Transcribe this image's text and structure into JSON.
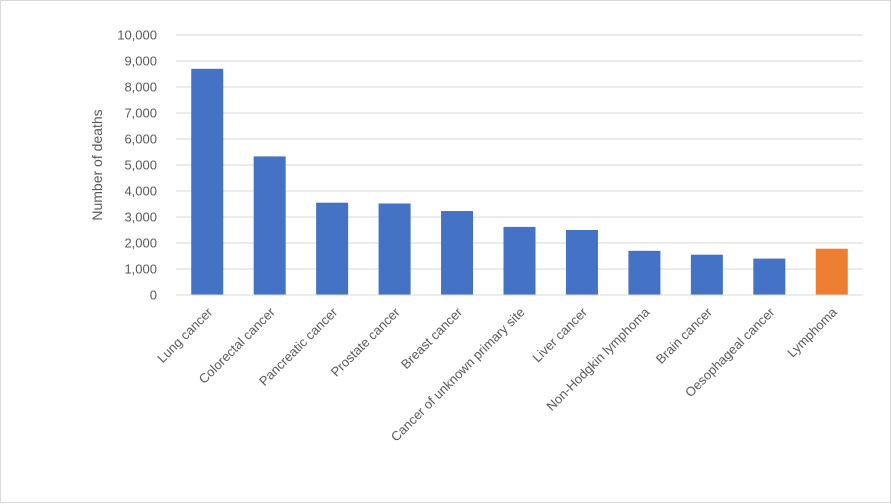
{
  "chart_data": {
    "type": "bar",
    "title": "",
    "xlabel": "",
    "ylabel": "Number of deaths",
    "ylim": [
      0,
      10000
    ],
    "yticks": [
      0,
      1000,
      2000,
      3000,
      4000,
      5000,
      6000,
      7000,
      8000,
      9000,
      10000
    ],
    "ytick_labels": [
      "0",
      "1,000",
      "2,000",
      "3,000",
      "4,000",
      "5,000",
      "6,000",
      "7,000",
      "8,000",
      "9,000",
      "10,000"
    ],
    "grid": true,
    "legend": "none",
    "categories": [
      "Lung cancer",
      "Colorectal cancer",
      "Pancreatic cancer",
      "Prostate cancer",
      "Breast cancer",
      "Cancer of unknown primary site",
      "Liver cancer",
      "Non-Hodgkin lymphoma",
      "Brain cancer",
      "Oesophageal cancer",
      "Lymphoma"
    ],
    "values": [
      8700,
      5330,
      3550,
      3520,
      3230,
      2620,
      2500,
      1700,
      1550,
      1400,
      1780
    ],
    "colors": [
      "#4472C4",
      "#4472C4",
      "#4472C4",
      "#4472C4",
      "#4472C4",
      "#4472C4",
      "#4472C4",
      "#4472C4",
      "#4472C4",
      "#4472C4",
      "#ED7D31"
    ]
  }
}
